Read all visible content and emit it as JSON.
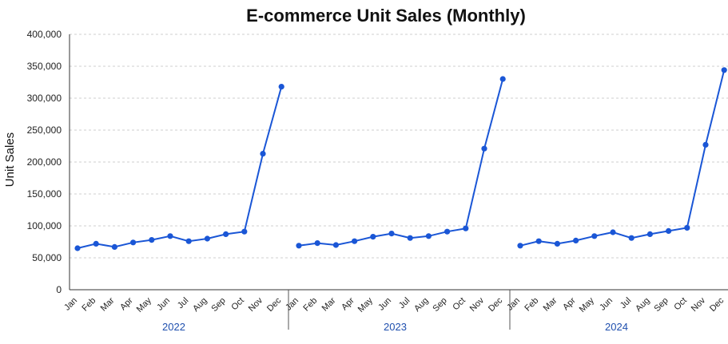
{
  "chart_data": {
    "type": "line",
    "title": "E-commerce Unit Sales (Monthly)",
    "xlabel": "",
    "ylabel": "Unit Sales",
    "ylim": [
      0,
      400000
    ],
    "yticks": [
      "0",
      "50,000",
      "100,000",
      "150,000",
      "200,000",
      "250,000",
      "300,000",
      "350,000",
      "400,000"
    ],
    "grid": true,
    "color": "#1a56d6",
    "year_color": "#1f4fae",
    "groups": [
      {
        "year": "2022",
        "months": [
          "Jan",
          "Feb",
          "Mar",
          "Apr",
          "May",
          "Jun",
          "Jul",
          "Aug",
          "Sep",
          "Oct",
          "Nov",
          "Dec"
        ],
        "values": [
          65000,
          72000,
          67000,
          74000,
          78000,
          84000,
          76000,
          80000,
          87000,
          91000,
          213000,
          318000
        ]
      },
      {
        "year": "2023",
        "months": [
          "Jan",
          "Feb",
          "Mar",
          "Apr",
          "May",
          "Jun",
          "Jul",
          "Aug",
          "Sep",
          "Oct",
          "Nov",
          "Dec"
        ],
        "values": [
          69000,
          73000,
          70000,
          76000,
          83000,
          88000,
          81000,
          84000,
          91000,
          96000,
          221000,
          330000
        ]
      },
      {
        "year": "2024",
        "months": [
          "Jan",
          "Feb",
          "Mar",
          "Apr",
          "May",
          "Jun",
          "Jul",
          "Aug",
          "Sep",
          "Oct",
          "Nov",
          "Dec"
        ],
        "values": [
          69000,
          76000,
          72000,
          77000,
          84000,
          90000,
          81000,
          87000,
          92000,
          97000,
          227000,
          344000
        ]
      }
    ]
  }
}
